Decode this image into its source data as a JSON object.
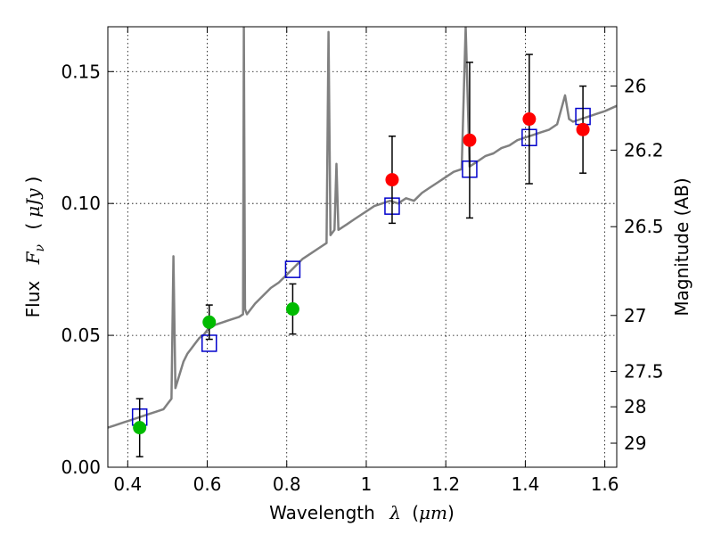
{
  "chart_data": {
    "type": "scatter",
    "xlabel": {
      "text": "Wavelength",
      "symbol": "λ",
      "unit_open": "(",
      "unit": "μm",
      "unit_close": ")"
    },
    "ylabel": {
      "text": "Flux",
      "symbol": "F",
      "sub": "ν",
      "unit_open": "(",
      "unit": "μJy",
      "unit_close": ")"
    },
    "y2label": "Magnitude (AB)",
    "xlim": [
      0.35,
      1.63
    ],
    "ylim": [
      0.0,
      0.167
    ],
    "xticks": [
      0.4,
      0.6,
      0.8,
      1.0,
      1.2,
      1.4,
      1.6
    ],
    "xtick_labels": [
      "0.4",
      "0.6",
      "0.8",
      "1",
      "1.2",
      "1.4",
      "1.6"
    ],
    "yticks": [
      0.0,
      0.05,
      0.1,
      0.15
    ],
    "ytick_labels": [
      "0.00",
      "0.05",
      "0.10",
      "0.15"
    ],
    "y2ticks": [
      {
        "label": "26",
        "mag": 26.0
      },
      {
        "label": "26.2",
        "mag": 26.2
      },
      {
        "label": "26.5",
        "mag": 26.5
      },
      {
        "label": "27",
        "mag": 27.0
      },
      {
        "label": "27.5",
        "mag": 27.5
      },
      {
        "label": "28",
        "mag": 28.0
      },
      {
        "label": "29",
        "mag": 29.0
      }
    ],
    "grid": true,
    "colors": {
      "spectrum": "#808080",
      "model": "#0000cc",
      "obs_green": "#00bb00",
      "obs_red": "#ff0000",
      "errorbar": "#000000"
    },
    "series": [
      {
        "kind": "line",
        "style": "spectrum",
        "points": [
          [
            0.35,
            0.015
          ],
          [
            0.37,
            0.016
          ],
          [
            0.39,
            0.017
          ],
          [
            0.41,
            0.018
          ],
          [
            0.43,
            0.019
          ],
          [
            0.45,
            0.02
          ],
          [
            0.47,
            0.021
          ],
          [
            0.49,
            0.022
          ],
          [
            0.5,
            0.024
          ],
          [
            0.51,
            0.026
          ],
          [
            0.515,
            0.08
          ],
          [
            0.52,
            0.03
          ],
          [
            0.53,
            0.035
          ],
          [
            0.54,
            0.04
          ],
          [
            0.55,
            0.043
          ],
          [
            0.56,
            0.045
          ],
          [
            0.57,
            0.047
          ],
          [
            0.58,
            0.049
          ],
          [
            0.59,
            0.05
          ],
          [
            0.6,
            0.052
          ],
          [
            0.62,
            0.054
          ],
          [
            0.64,
            0.055
          ],
          [
            0.66,
            0.056
          ],
          [
            0.68,
            0.057
          ],
          [
            0.69,
            0.058
          ],
          [
            0.692,
            0.167
          ],
          [
            0.695,
            0.06
          ],
          [
            0.7,
            0.058
          ],
          [
            0.72,
            0.062
          ],
          [
            0.74,
            0.065
          ],
          [
            0.76,
            0.068
          ],
          [
            0.78,
            0.07
          ],
          [
            0.8,
            0.073
          ],
          [
            0.82,
            0.076
          ],
          [
            0.84,
            0.079
          ],
          [
            0.86,
            0.081
          ],
          [
            0.88,
            0.083
          ],
          [
            0.9,
            0.085
          ],
          [
            0.905,
            0.165
          ],
          [
            0.91,
            0.088
          ],
          [
            0.92,
            0.09
          ],
          [
            0.925,
            0.115
          ],
          [
            0.93,
            0.09
          ],
          [
            0.95,
            0.092
          ],
          [
            0.97,
            0.094
          ],
          [
            0.99,
            0.096
          ],
          [
            1.0,
            0.097
          ],
          [
            1.02,
            0.099
          ],
          [
            1.04,
            0.1
          ],
          [
            1.06,
            0.101
          ],
          [
            1.08,
            0.1
          ],
          [
            1.1,
            0.102
          ],
          [
            1.12,
            0.101
          ],
          [
            1.14,
            0.104
          ],
          [
            1.16,
            0.106
          ],
          [
            1.18,
            0.108
          ],
          [
            1.2,
            0.11
          ],
          [
            1.22,
            0.112
          ],
          [
            1.24,
            0.113
          ],
          [
            1.25,
            0.167
          ],
          [
            1.26,
            0.114
          ],
          [
            1.28,
            0.116
          ],
          [
            1.3,
            0.118
          ],
          [
            1.32,
            0.119
          ],
          [
            1.34,
            0.121
          ],
          [
            1.36,
            0.122
          ],
          [
            1.38,
            0.124
          ],
          [
            1.4,
            0.125
          ],
          [
            1.42,
            0.126
          ],
          [
            1.44,
            0.127
          ],
          [
            1.46,
            0.128
          ],
          [
            1.48,
            0.13
          ],
          [
            1.5,
            0.141
          ],
          [
            1.51,
            0.132
          ],
          [
            1.52,
            0.131
          ],
          [
            1.54,
            0.132
          ],
          [
            1.56,
            0.133
          ],
          [
            1.58,
            0.134
          ],
          [
            1.6,
            0.135
          ],
          [
            1.63,
            0.137
          ]
        ]
      },
      {
        "kind": "markers",
        "style": "model",
        "marker": "square-open",
        "points": [
          [
            0.43,
            0.019
          ],
          [
            0.605,
            0.047
          ],
          [
            0.815,
            0.075
          ],
          [
            1.065,
            0.099
          ],
          [
            1.26,
            0.113
          ],
          [
            1.41,
            0.125
          ],
          [
            1.545,
            0.133
          ]
        ]
      },
      {
        "kind": "markers",
        "style": "obs_green",
        "marker": "circle",
        "points": [
          {
            "x": 0.43,
            "y": 0.015,
            "err": 0.011
          },
          {
            "x": 0.605,
            "y": 0.055,
            "err": 0.0065
          },
          {
            "x": 0.815,
            "y": 0.06,
            "err": 0.0095
          }
        ]
      },
      {
        "kind": "markers",
        "style": "obs_red",
        "marker": "circle",
        "points": [
          {
            "x": 1.065,
            "y": 0.109,
            "err": 0.0165
          },
          {
            "x": 1.26,
            "y": 0.124,
            "err": 0.0295
          },
          {
            "x": 1.41,
            "y": 0.132,
            "err": 0.0245
          },
          {
            "x": 1.545,
            "y": 0.128,
            "err": 0.0165
          }
        ]
      }
    ]
  }
}
